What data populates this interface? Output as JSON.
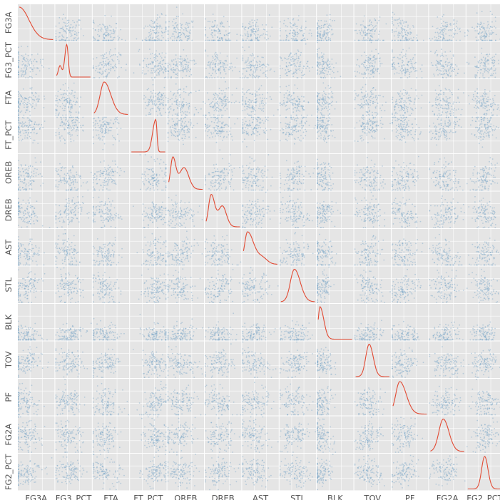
{
  "chart_data": {
    "type": "scatter",
    "subtype": "scatter_matrix",
    "variables": [
      "FG3A",
      "FG3_PCT",
      "FTA",
      "FT_PCT",
      "OREB",
      "DREB",
      "AST",
      "STL",
      "BLK",
      "TOV",
      "PF",
      "FG2A",
      "FG2_PCT"
    ],
    "diagonal": "kde",
    "grid": true,
    "background": "#e5e5e5",
    "colors": {
      "points": "#7aa6c8",
      "kde": "#e24a33"
    },
    "kde_shapes": [
      {
        "variable": "FG3A",
        "peak": 0.0,
        "width": 0.16,
        "skew": 1.6,
        "secondary": null
      },
      {
        "variable": "FG3_PCT",
        "peak": 0.3,
        "width": 0.06,
        "skew": -0.6,
        "secondary": {
          "at": 0.1,
          "height": 0.35,
          "width": 0.05
        }
      },
      {
        "variable": "FTA",
        "peak": 0.3,
        "width": 0.12,
        "skew": 1.3,
        "secondary": null
      },
      {
        "variable": "FT_PCT",
        "peak": 0.72,
        "width": 0.09,
        "skew": -1.2,
        "secondary": null
      },
      {
        "variable": "OREB",
        "peak": 0.12,
        "width": 0.07,
        "skew": 0.5,
        "secondary": {
          "at": 0.45,
          "height": 0.7,
          "width": 0.14
        }
      },
      {
        "variable": "DREB",
        "peak": 0.15,
        "width": 0.08,
        "skew": 0.6,
        "secondary": {
          "at": 0.48,
          "height": 0.65,
          "width": 0.12
        }
      },
      {
        "variable": "AST",
        "peak": 0.12,
        "width": 0.09,
        "skew": 2.0,
        "secondary": {
          "at": 0.55,
          "height": 0.2,
          "width": 0.15
        }
      },
      {
        "variable": "STL",
        "peak": 0.4,
        "width": 0.12,
        "skew": 0.9,
        "secondary": null
      },
      {
        "variable": "BLK",
        "peak": 0.05,
        "width": 0.05,
        "skew": 2.5,
        "secondary": null
      },
      {
        "variable": "TOV",
        "peak": 0.4,
        "width": 0.1,
        "skew": 0.4,
        "secondary": null
      },
      {
        "variable": "PF",
        "peak": 0.2,
        "width": 0.12,
        "skew": 1.2,
        "secondary": null
      },
      {
        "variable": "FG2A",
        "peak": 0.38,
        "width": 0.13,
        "skew": 0.6,
        "secondary": null
      },
      {
        "variable": "FG2_PCT",
        "peak": 0.5,
        "width": 0.09,
        "skew": 0.2,
        "secondary": null
      }
    ]
  }
}
